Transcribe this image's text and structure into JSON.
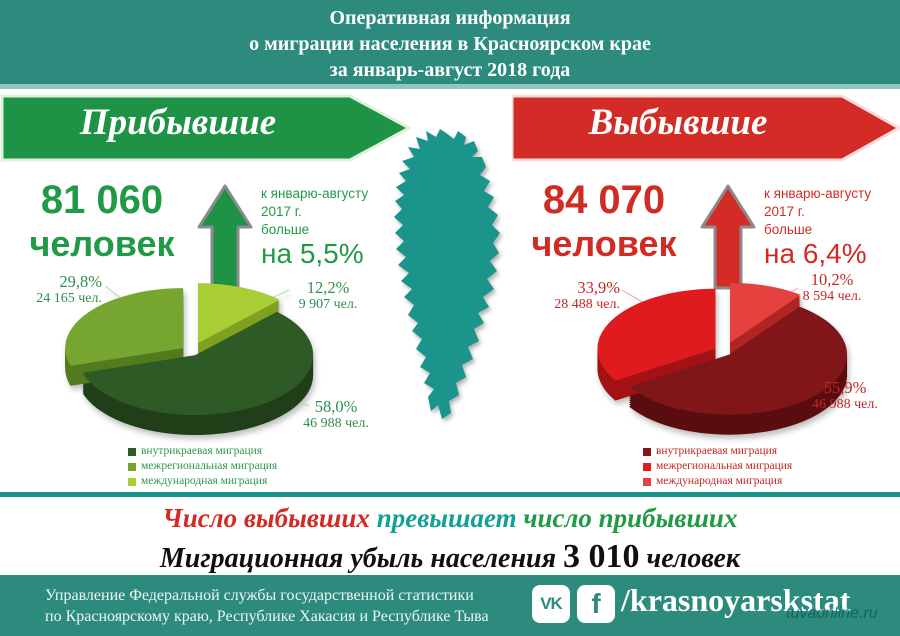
{
  "header": {
    "lines": [
      "Оперативная информация",
      "о миграции населения в Красноярском крае",
      "за январь-август 2018 года"
    ]
  },
  "arrived": {
    "banner": "Прибывшие",
    "count": "81 060",
    "unit": "человек",
    "note_lines": [
      "к январю-августу",
      "2017 г.",
      "больше"
    ],
    "change": "на 5,5%"
  },
  "departed": {
    "banner": "Выбывшие",
    "count": "84 070",
    "unit": "человек",
    "note_lines": [
      "к январю-августу",
      "2017 г.",
      "больше"
    ],
    "change": "на 6,4%"
  },
  "chart_data": [
    {
      "type": "pie",
      "name": "arrived",
      "title": "Прибывшие",
      "total_people": 81060,
      "categories": [
        "внутрикраевая миграция",
        "межрегиональная миграция",
        "международная миграция"
      ],
      "values_pct": [
        58.0,
        29.8,
        12.2
      ],
      "values_people": [
        46988,
        24165,
        9907
      ],
      "labels": [
        {
          "pct": "58,0%",
          "count": "46 988 чел."
        },
        {
          "pct": "29,8%",
          "count": "24 165 чел."
        },
        {
          "pct": "12,2%",
          "count": "9 907 чел."
        }
      ],
      "colors": [
        "#2e5b25",
        "#76a62f",
        "#a9cd35"
      ],
      "side_colors": [
        "#203f19",
        "#527b1e",
        "#7fa021"
      ]
    },
    {
      "type": "pie",
      "name": "departed",
      "title": "Выбывшие",
      "total_people": 84070,
      "categories": [
        "внутрикраевая миграция",
        "межрегиональная миграция",
        "международная миграция"
      ],
      "values_pct": [
        55.9,
        33.9,
        10.2
      ],
      "values_people": [
        46988,
        28488,
        8594
      ],
      "labels": [
        {
          "pct": "55,9%",
          "count": "46 988 чел."
        },
        {
          "pct": "33,9%",
          "count": "28 488 чел."
        },
        {
          "pct": "10,2%",
          "count": "8 594 чел."
        }
      ],
      "colors": [
        "#801617",
        "#df1b1d",
        "#e4413f"
      ],
      "side_colors": [
        "#5a0d0f",
        "#a31214",
        "#b02523"
      ]
    }
  ],
  "conclusion": {
    "part_red": "Число выбывших",
    "part_teal": "превышает",
    "part_green": "число прибывших",
    "line2_prefix": "Миграционная убыль населения",
    "line2_number": "3 010",
    "line2_suffix": "человек"
  },
  "footer": {
    "org_lines": [
      "Управление Федеральной службы государственной статистики",
      "по Красноярскому краю, Республике Хакасия и Республике Тыва"
    ],
    "vk_label": "VK",
    "fb_label": "f",
    "social_handle": "/krasnoyarskstat"
  },
  "watermark": "tuvaonline.ru",
  "colors": {
    "header_teal": "#2d8b7e",
    "light_teal": "#8fc7bf",
    "strip_teal": "#17928a",
    "green": "#219a47",
    "red": "#d22b24",
    "map_teal": "#1b958b",
    "conclusion_teal": "#13a096"
  }
}
